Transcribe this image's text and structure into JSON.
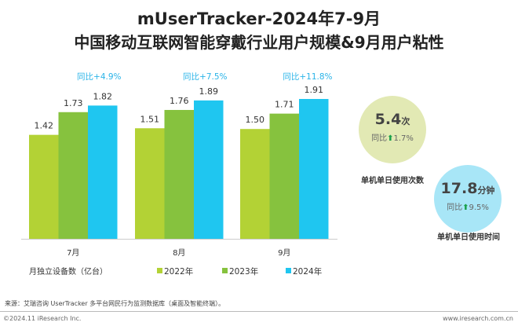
{
  "title_line1": "mUserTracker-2024年7-9月",
  "title_line2": "中国移动互联网智能穿戴行业用户规模&9月用户粘性",
  "chart_data": {
    "type": "bar",
    "categories": [
      "7月",
      "8月",
      "9月"
    ],
    "ylabel": "月独立设备数（亿台）",
    "series": [
      {
        "name": "2022年",
        "values": [
          1.42,
          1.51,
          1.5
        ],
        "color": "#b3d235"
      },
      {
        "name": "2023年",
        "values": [
          1.73,
          1.76,
          1.71
        ],
        "color": "#86c23e"
      },
      {
        "name": "2024年",
        "values": [
          1.82,
          1.89,
          1.91
        ],
        "color": "#1fc6f0"
      }
    ],
    "yoy_labels": [
      "同比+4.9%",
      "同比+7.5%",
      "同比+11.8%"
    ],
    "yoy_color": "#2ab4e8",
    "legend_position": "bottom",
    "grid": false
  },
  "stats": [
    {
      "value": "5.4",
      "unit": "次",
      "yoy_prefix": "同比",
      "yoy_value": "1.7%",
      "label": "单机单日使用次数",
      "color": "#e2e9b4"
    },
    {
      "value": "17.8",
      "unit": "分钟",
      "yoy_prefix": "同比",
      "yoy_value": "9.5%",
      "label": "单机单日使用时间",
      "color": "#a8e6f7"
    }
  ],
  "footer": {
    "source": "来源：艾瑞咨询 UserTracker 多平台网民行为监测数据库（桌面及智能终端）。",
    "copyright": "©2024.11 iResearch Inc.",
    "website": "www.iresearch.com.cn"
  }
}
